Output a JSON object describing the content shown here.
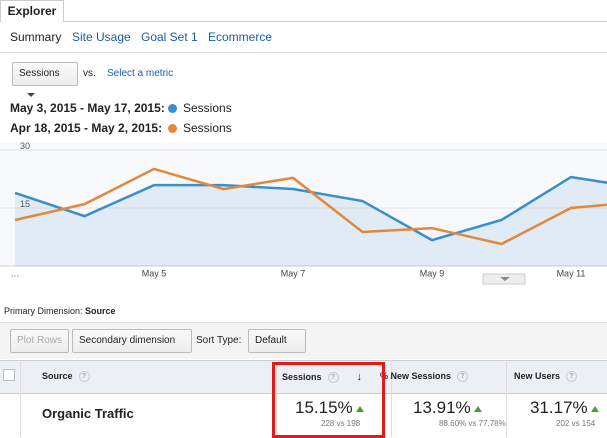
{
  "tabs": [
    "Explorer"
  ],
  "subnav": [
    "Summary",
    "Site Usage",
    "Goal Set 1",
    "Ecommerce"
  ],
  "metric_selector": {
    "metric": "Sessions",
    "vs": "vs.",
    "select": "Select a metric"
  },
  "chart_data": {
    "type": "line",
    "categories": [
      "…",
      null,
      "May 5",
      null,
      "May 7",
      null,
      "May 9",
      null,
      "May 11",
      null
    ],
    "series": [
      {
        "range": "May 3, 2015 - May 17, 2015:",
        "name": "Sessions",
        "color": "#3a8fc9",
        "values": [
          18.9,
          12.9,
          20.9,
          20.9,
          19.9,
          16.8,
          6.7,
          11.9,
          23.0,
          20.2
        ]
      },
      {
        "range": "Apr 18, 2015 - May 2, 2015:",
        "name": "Sessions",
        "color": "#e3883a",
        "values": [
          11.9,
          16.0,
          25.1,
          19.9,
          22.8,
          8.8,
          9.8,
          5.7,
          15.0,
          16.6
        ]
      }
    ],
    "ylim": [
      0,
      30
    ],
    "yticks": [
      15,
      30
    ],
    "grid": true
  },
  "primary_dimension": {
    "label": "Primary Dimension:",
    "value": "Source"
  },
  "toolbar": {
    "plot_rows": "Plot Rows",
    "secondary": "Secondary dimension",
    "sort_label": "Sort Type:",
    "sort_value": "Default"
  },
  "table": {
    "columns": [
      "Source",
      "Sessions",
      "% New Sessions",
      "New Users"
    ],
    "rows": [
      {
        "source": "Organic Traffic",
        "cells": [
          {
            "change": "15.15%",
            "comparison": "228 vs 198"
          },
          {
            "change": "13.91%",
            "comparison": "88.60% vs 77.78%"
          },
          {
            "change": "31.17%",
            "comparison": "202 vs 154"
          }
        ]
      }
    ]
  }
}
